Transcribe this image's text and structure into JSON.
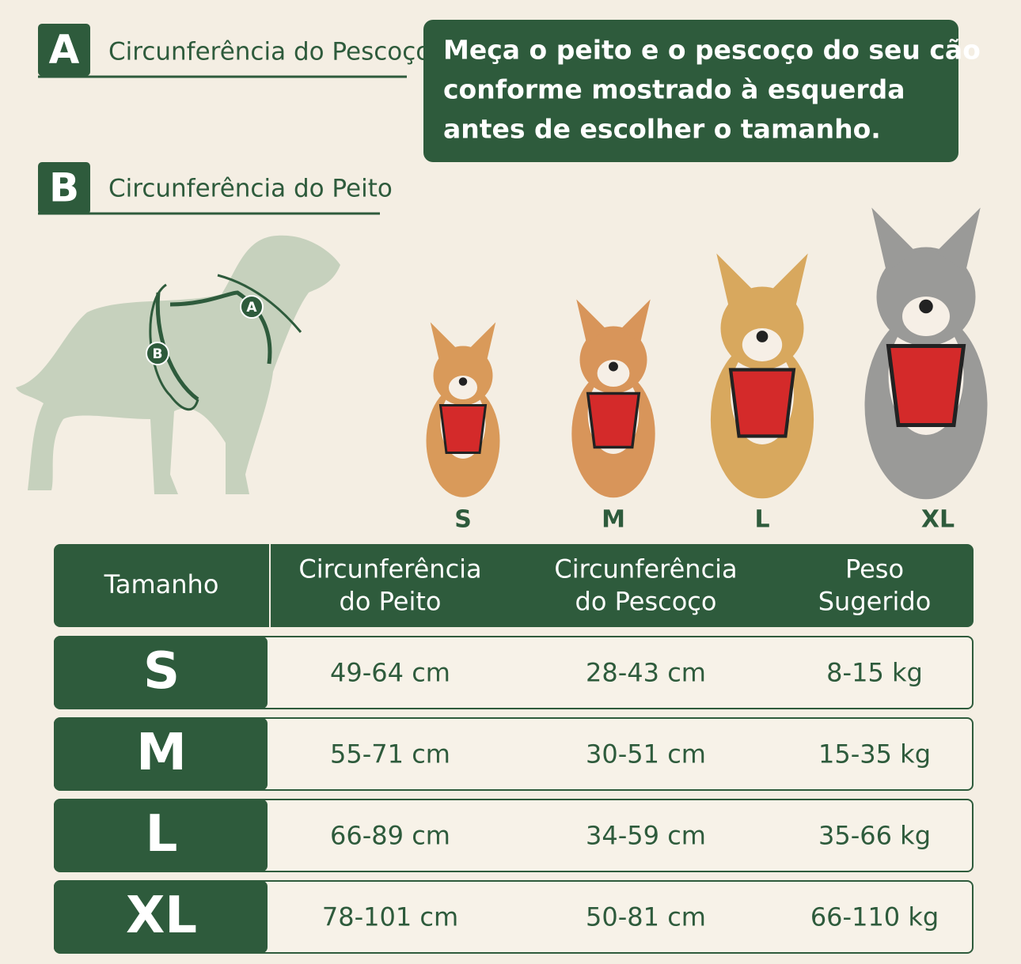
{
  "legend": [
    {
      "letter": "A",
      "label": "Circunferência do Pescoço"
    },
    {
      "letter": "B",
      "label": "Circunferência do Peito"
    }
  ],
  "instruction": [
    "Meça o peito e o pescoço do seu cão",
    "conforme mostrado à esquerda",
    "antes de escolher o tamanho."
  ],
  "dog_sizes": [
    "S",
    "M",
    "L",
    "XL"
  ],
  "table": {
    "header": [
      [
        "Tamanho"
      ],
      [
        "Circunferência",
        "do Peito"
      ],
      [
        "Circunferência",
        "do Pescoço"
      ],
      [
        "Peso",
        "Sugerido"
      ]
    ],
    "rows": [
      [
        "S",
        "49-64 cm",
        "28-43 cm",
        "8-15 kg"
      ],
      [
        "M",
        "55-71 cm",
        "30-51 cm",
        "15-35 kg"
      ],
      [
        "L",
        "66-89 cm",
        "34-59 cm",
        "35-66 kg"
      ],
      [
        "XL",
        "78-101 cm",
        "50-81 cm",
        "66-110 kg"
      ]
    ]
  }
}
